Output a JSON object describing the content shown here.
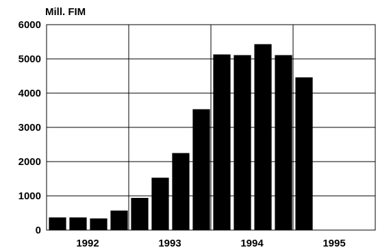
{
  "chart_data": {
    "type": "bar",
    "ylabel": "Mill. FIM",
    "ylim": [
      0,
      6000
    ],
    "yticks": [
      0,
      1000,
      2000,
      3000,
      4000,
      5000,
      6000
    ],
    "groups": [
      "1992",
      "1993",
      "1994",
      "1995"
    ],
    "bars_per_group": 4,
    "grid": true,
    "bar_color": "#000000",
    "values": [
      370,
      370,
      340,
      570,
      940,
      1530,
      2250,
      3530,
      5130,
      5110,
      5430,
      5110,
      4460
    ]
  }
}
